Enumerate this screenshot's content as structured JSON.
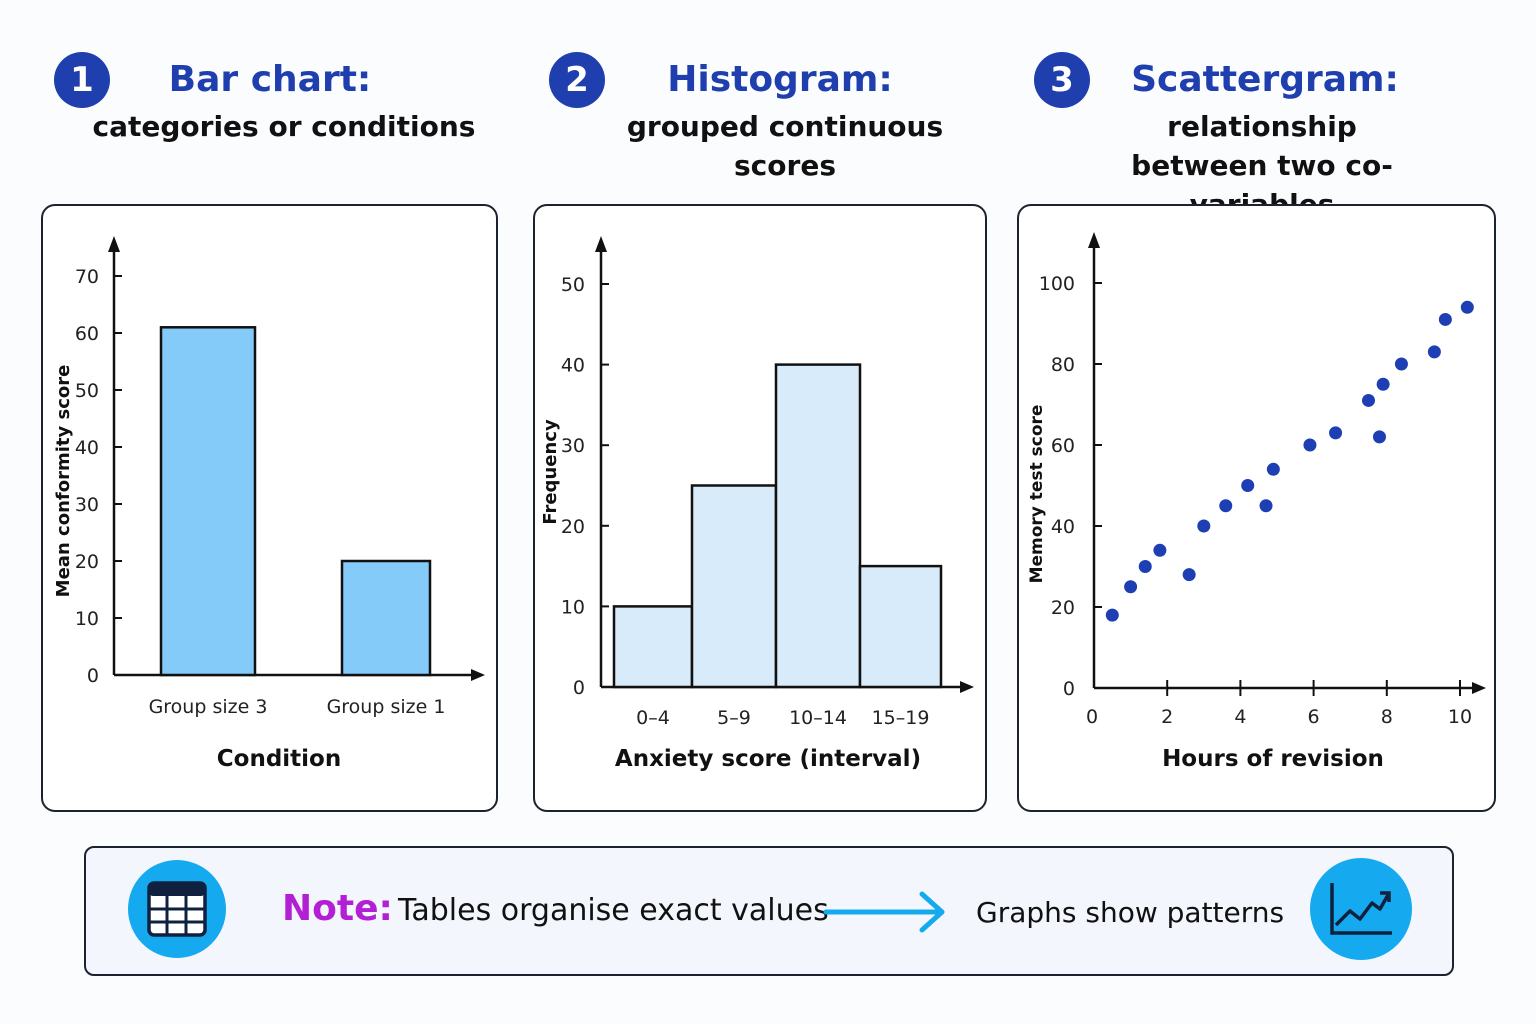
{
  "colors": {
    "heading_blue": "#1f3fae",
    "bar_fill": "#84cbfa",
    "hist_fill": "#d7ebfb",
    "dot_blue": "#1d3fb3",
    "note_purple": "#b21fd4",
    "icon_circle": "#15aaf0",
    "arrow": "#15aaf0"
  },
  "headings": [
    {
      "number": "1",
      "title": "Bar chart:",
      "subtitle": "categories or conditions"
    },
    {
      "number": "2",
      "title": "Histogram:",
      "subtitle": "grouped continuous scores"
    },
    {
      "number": "3",
      "title": "Scattergram:",
      "subtitle": "relationship between two co-variables"
    }
  ],
  "chart_data": [
    {
      "type": "bar",
      "title": "",
      "xlabel": "Condition",
      "ylabel": "Mean conformity score",
      "categories": [
        "Group size 3",
        "Group size 1"
      ],
      "values": [
        61,
        20
      ],
      "ylim": [
        0,
        70
      ],
      "yticks": [
        0,
        10,
        20,
        30,
        40,
        50,
        60,
        70
      ],
      "grid": false
    },
    {
      "type": "bar",
      "title": "",
      "xlabel": "Anxiety score (interval)",
      "ylabel": "Frequency",
      "categories": [
        "0–4",
        "5–9",
        "10–14",
        "15–19"
      ],
      "values": [
        10,
        25,
        40,
        15
      ],
      "ylim": [
        0,
        50
      ],
      "yticks": [
        0,
        10,
        20,
        30,
        40,
        50
      ],
      "grid": false
    },
    {
      "type": "scatter",
      "title": "",
      "xlabel": "Hours of revision",
      "ylabel": "Memory test score",
      "xlim": [
        0,
        10.5
      ],
      "ylim": [
        0,
        100
      ],
      "xticks": [
        0,
        2,
        4,
        6,
        8,
        10
      ],
      "yticks": [
        0,
        20,
        40,
        60,
        80,
        100
      ],
      "grid": false,
      "points": [
        {
          "x": 0.5,
          "y": 18
        },
        {
          "x": 1.0,
          "y": 25
        },
        {
          "x": 1.4,
          "y": 30
        },
        {
          "x": 1.8,
          "y": 34
        },
        {
          "x": 2.6,
          "y": 28
        },
        {
          "x": 3.0,
          "y": 40
        },
        {
          "x": 3.6,
          "y": 45
        },
        {
          "x": 4.2,
          "y": 50
        },
        {
          "x": 4.7,
          "y": 45
        },
        {
          "x": 4.9,
          "y": 54
        },
        {
          "x": 5.9,
          "y": 60
        },
        {
          "x": 6.6,
          "y": 63
        },
        {
          "x": 7.5,
          "y": 71
        },
        {
          "x": 7.8,
          "y": 62
        },
        {
          "x": 7.9,
          "y": 75
        },
        {
          "x": 8.4,
          "y": 80
        },
        {
          "x": 9.3,
          "y": 83
        },
        {
          "x": 9.6,
          "y": 91
        },
        {
          "x": 10.2,
          "y": 94
        }
      ]
    }
  ],
  "note": {
    "label": "Note:",
    "left_text": "Tables organise exact values",
    "right_text": "Graphs show patterns",
    "left_icon": "table-icon",
    "right_icon": "line-graph-icon",
    "arrow_icon": "right-arrow-icon"
  }
}
